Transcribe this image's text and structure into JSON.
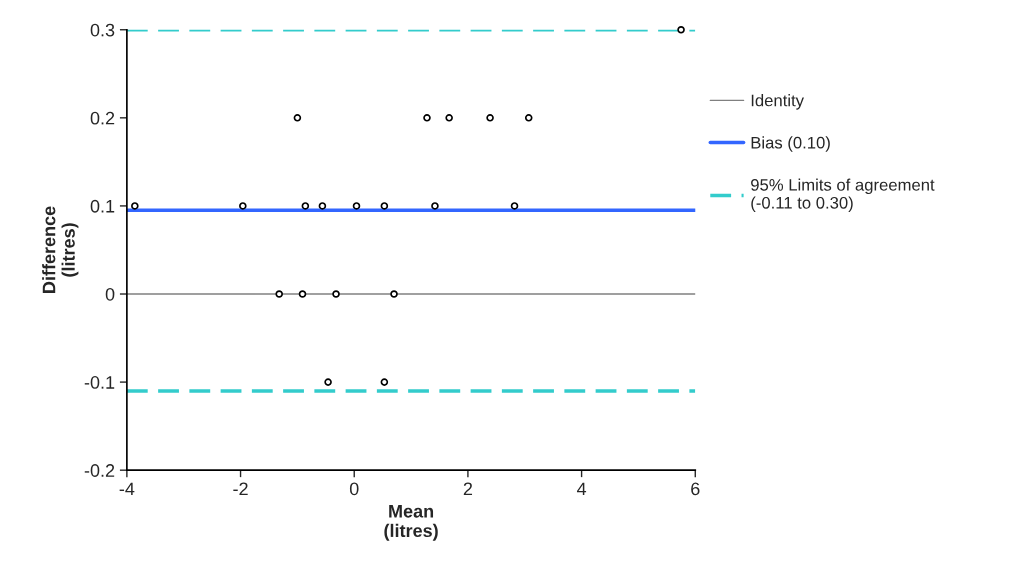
{
  "chart_data": {
    "type": "scatter",
    "xlabel": "Mean\n(litres)",
    "ylabel": "Difference\n(litres)",
    "x": [
      5.75,
      -1.0,
      1.28,
      1.67,
      2.39,
      3.07,
      -3.86,
      -1.96,
      -0.86,
      -0.56,
      0.04,
      0.53,
      1.42,
      2.82,
      -1.32,
      -0.91,
      -0.32,
      0.7,
      -0.46,
      0.53
    ],
    "values": [
      0.3,
      0.2,
      0.2,
      0.2,
      0.2,
      0.2,
      0.1,
      0.1,
      0.1,
      0.1,
      0.1,
      0.1,
      0.1,
      0.1,
      0,
      0,
      0,
      0,
      -0.1,
      -0.1
    ],
    "color": "#000000",
    "marker": "circle",
    "xlim": [
      -4,
      6
    ],
    "xticks": [
      -4,
      -2,
      0,
      2,
      4,
      6
    ],
    "ylim": [
      -0.2,
      0.3
    ],
    "yticks": [
      -0.2,
      -0.1,
      0,
      0.1,
      0.2,
      0.3
    ],
    "ref_lines": [
      {
        "axis": "y",
        "value": 0,
        "label": "Identity",
        "color": "#808080",
        "line_style": "solid"
      },
      {
        "axis": "y",
        "value": 0.095,
        "label": "Bias (0.10)",
        "color": "#3366ff",
        "line_style": "solid"
      },
      {
        "axis": "y",
        "value": 0.3,
        "label": "95% Limits of agreement\n(-0.11 to 0.30)",
        "color": "#33cccc",
        "line_style": "dashed"
      },
      {
        "axis": "y",
        "value": -0.11,
        "label": null,
        "color": "#33cccc",
        "line_style": "dashed"
      }
    ],
    "grid": false,
    "legend": "right"
  }
}
